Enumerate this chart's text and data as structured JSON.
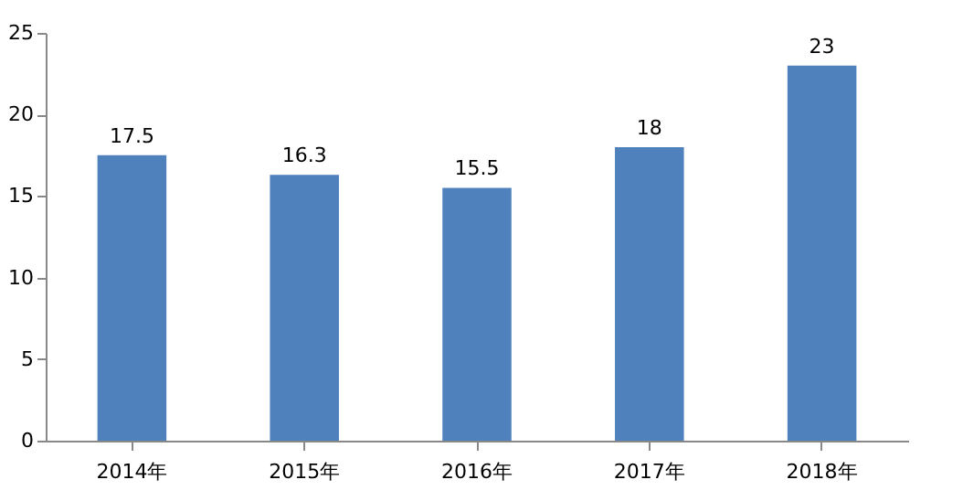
{
  "chart_data": {
    "type": "bar",
    "categories": [
      "2014年",
      "2015年",
      "2016年",
      "2017年",
      "2018年"
    ],
    "values": [
      17.5,
      16.3,
      15.5,
      18,
      23
    ],
    "color": "#4f81bd",
    "ylim": [
      0,
      25
    ],
    "yticks": [
      0,
      5,
      10,
      15,
      20,
      25
    ],
    "data_labels": true,
    "grid": false
  }
}
